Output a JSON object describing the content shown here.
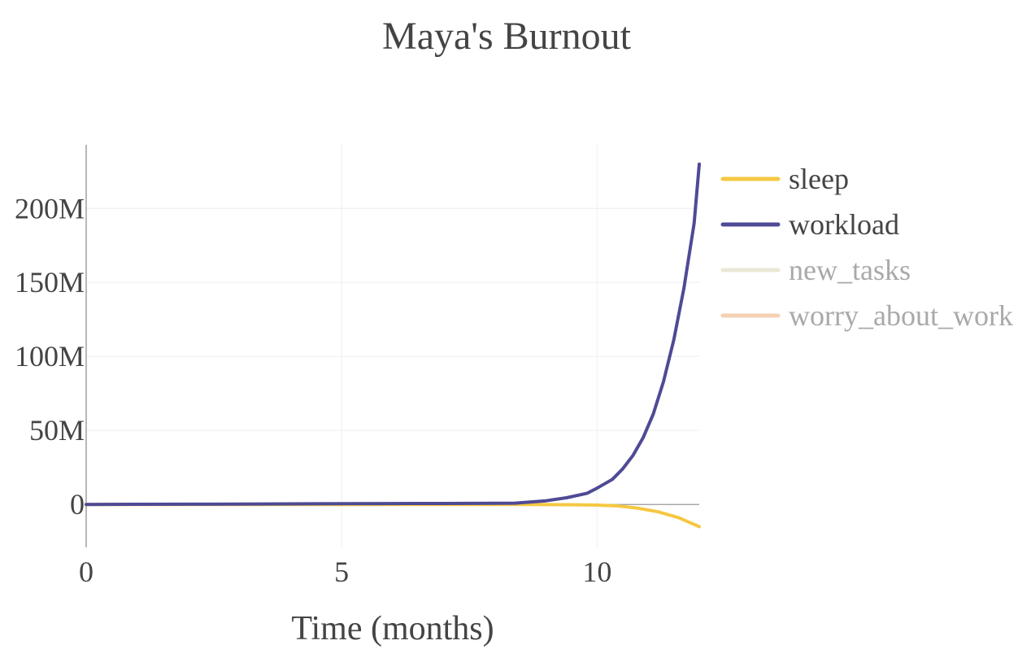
{
  "chart_data": {
    "type": "line",
    "title": "Maya's Burnout",
    "xlabel": "Time (months)",
    "ylabel": "",
    "xlim": [
      0,
      12
    ],
    "ylim": [
      -29000000,
      243000000
    ],
    "x_ticks": [
      {
        "value": 0,
        "label": "0"
      },
      {
        "value": 5,
        "label": "5"
      },
      {
        "value": 10,
        "label": "10"
      }
    ],
    "y_ticks": [
      {
        "value": 0,
        "label": "0"
      },
      {
        "value": 50000000,
        "label": "50M"
      },
      {
        "value": 100000000,
        "label": "100M"
      },
      {
        "value": 150000000,
        "label": "150M"
      },
      {
        "value": 200000000,
        "label": "200M"
      }
    ],
    "grid": true,
    "legend_position": "right",
    "series": [
      {
        "name": "sleep",
        "color": "#f5c842",
        "visible": true,
        "x": [
          0,
          1,
          2,
          3,
          4,
          5,
          6,
          7,
          8,
          9,
          9.6,
          10,
          10.4,
          10.8,
          11.2,
          11.6,
          12
        ],
        "values": [
          0,
          0,
          0,
          0,
          0,
          0,
          0,
          0,
          0,
          -100000,
          -200000,
          -400000,
          -1000000,
          -2500000,
          -5000000,
          -9000000,
          -15000000
        ]
      },
      {
        "name": "workload",
        "color": "#4f4a95",
        "visible": true,
        "x": [
          0,
          1,
          2,
          3,
          4,
          5,
          6,
          7,
          8,
          8.4,
          9,
          9.4,
          9.8,
          10,
          10.3,
          10.5,
          10.7,
          10.9,
          11.1,
          11.3,
          11.5,
          11.7,
          11.9,
          12
        ],
        "values": [
          0,
          100000,
          200000,
          300000,
          400000,
          500000,
          600000,
          700000,
          800000,
          900000,
          2500000,
          4500000,
          7500000,
          11000000,
          17000000,
          24000000,
          33000000,
          45000000,
          61000000,
          83000000,
          111000000,
          146000000,
          190000000,
          230000000
        ]
      },
      {
        "name": "new_tasks",
        "color": "#e8e4d0",
        "visible": false,
        "x": [],
        "values": []
      },
      {
        "name": "worry_about_work",
        "color": "#f4c9a8",
        "visible": false,
        "x": [],
        "values": []
      }
    ]
  }
}
